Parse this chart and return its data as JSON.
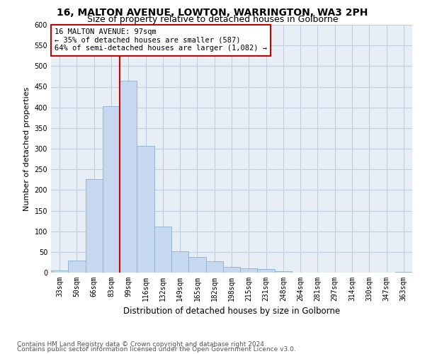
{
  "title1": "16, MALTON AVENUE, LOWTON, WARRINGTON, WA3 2PH",
  "title2": "Size of property relative to detached houses in Golborne",
  "xlabel": "Distribution of detached houses by size in Golborne",
  "ylabel": "Number of detached properties",
  "categories": [
    "33sqm",
    "50sqm",
    "66sqm",
    "83sqm",
    "99sqm",
    "116sqm",
    "132sqm",
    "149sqm",
    "165sqm",
    "182sqm",
    "198sqm",
    "215sqm",
    "231sqm",
    "248sqm",
    "264sqm",
    "281sqm",
    "297sqm",
    "314sqm",
    "330sqm",
    "347sqm",
    "363sqm"
  ],
  "values": [
    5,
    30,
    227,
    402,
    464,
    307,
    111,
    52,
    38,
    27,
    13,
    11,
    8,
    3,
    0,
    0,
    0,
    0,
    0,
    0,
    1
  ],
  "bar_color": "#c5d8f0",
  "bar_edge_color": "#8aafd0",
  "vline_color": "#cc0000",
  "annotation_text": "16 MALTON AVENUE: 97sqm\n← 35% of detached houses are smaller (587)\n64% of semi-detached houses are larger (1,082) →",
  "annotation_box_color": "#ffffff",
  "annotation_box_edgecolor": "#cc0000",
  "ylim": [
    0,
    600
  ],
  "yticks": [
    0,
    50,
    100,
    150,
    200,
    250,
    300,
    350,
    400,
    450,
    500,
    550,
    600
  ],
  "grid_color": "#c0cfe0",
  "background_color": "#e8eef5",
  "footer1": "Contains HM Land Registry data © Crown copyright and database right 2024.",
  "footer2": "Contains public sector information licensed under the Open Government Licence v3.0.",
  "title1_fontsize": 10,
  "title2_fontsize": 9,
  "xlabel_fontsize": 8.5,
  "ylabel_fontsize": 8,
  "tick_fontsize": 7,
  "annotation_fontsize": 7.5,
  "footer_fontsize": 6.5
}
